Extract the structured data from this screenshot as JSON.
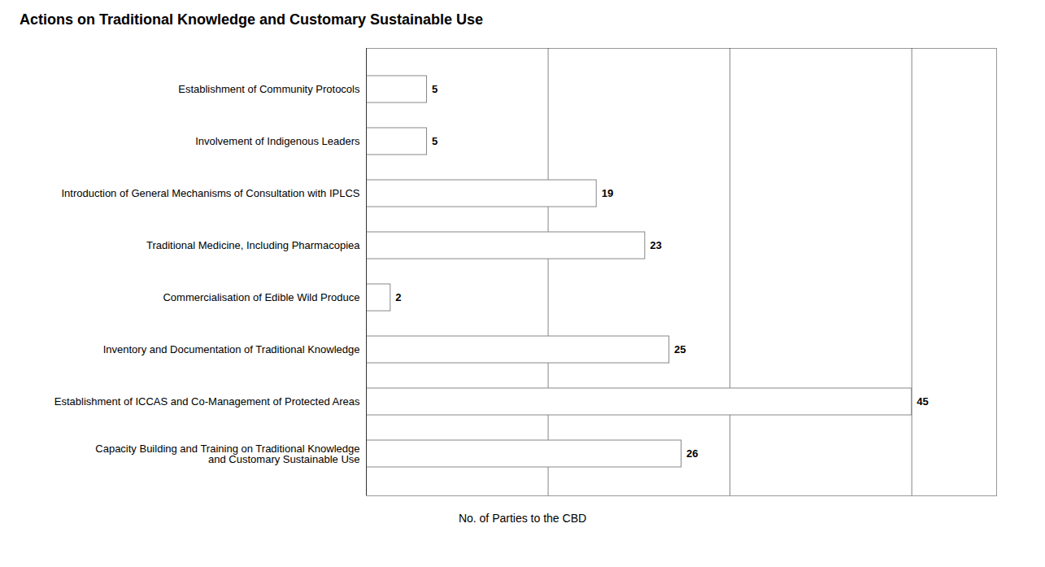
{
  "chart_data": {
    "type": "bar",
    "orientation": "horizontal",
    "title": "Actions on Traditional Knowledge and Customary Sustainable Use",
    "xlabel": "No. of Parties to the CBD",
    "categories": [
      "Capacity Building and Training on Traditional Knowledge\nand Customary Sustainable Use",
      "Establishment of ICCAS and Co-Management of Protected Areas",
      "Inventory and Documentation of Traditional Knowledge",
      "Commercialisation of Edible Wild Produce",
      "Traditional Medicine, Including Pharmacopiea",
      "Introduction of General Mechanisms of Consultation with IPLCS",
      "Involvement of Indigenous Leaders",
      "Establishment of Community Protocols"
    ],
    "values": [
      26,
      45,
      25,
      2,
      23,
      19,
      5,
      5
    ],
    "color": "#ffffff",
    "xlim": [
      0,
      52
    ],
    "xticks": [
      15,
      30,
      45
    ],
    "grid": true,
    "data_labels": true,
    "tick_labels": "y"
  }
}
